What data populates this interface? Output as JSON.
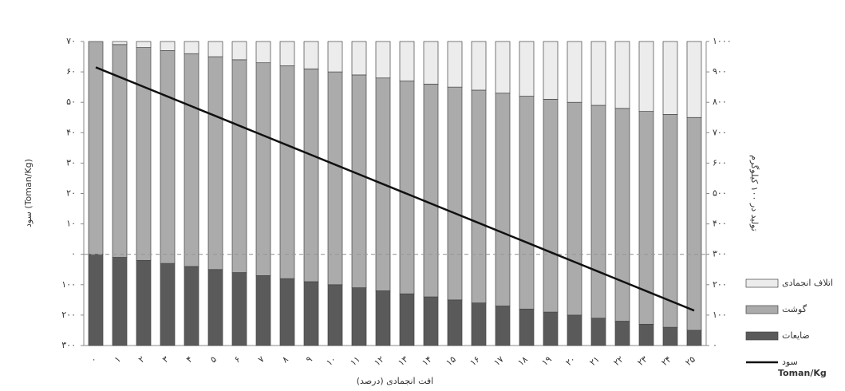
{
  "chart_data": {
    "type": "bar",
    "y_title": "سود (Toman/Kg)",
    "y2_title": "تولید در ۱۰۰ کیلوگرم",
    "x_title": "افت انجمادی (درصد)",
    "categories": [
      "۰",
      "۱",
      "۲",
      "۳",
      "۴",
      "۵",
      "۶",
      "۷",
      "۸",
      "۹",
      "۱۰",
      "۱۱",
      "۱۲",
      "۱۳",
      "۱۴",
      "۱۵",
      "۱۶",
      "۱۷",
      "۱۸",
      "۱۹",
      "۲۰",
      "۲۱",
      "۲۲",
      "۲۳",
      "۲۴",
      "۲۵"
    ],
    "series": [
      {
        "name": "ضایعات",
        "color": "#5a5a5a",
        "axis": "y2",
        "values": [
          300,
          290,
          280,
          270,
          260,
          250,
          240,
          230,
          220,
          210,
          200,
          190,
          180,
          170,
          160,
          150,
          140,
          130,
          120,
          110,
          100,
          90,
          80,
          70,
          60,
          50
        ]
      },
      {
        "name": "گوشت",
        "color": "#ababab",
        "axis": "y2",
        "values": [
          700,
          700,
          700,
          700,
          700,
          700,
          700,
          700,
          700,
          700,
          700,
          700,
          700,
          700,
          700,
          700,
          700,
          700,
          700,
          700,
          700,
          700,
          700,
          700,
          700,
          700
        ]
      },
      {
        "name": "اتلاف انجمادی",
        "color": "#ececec",
        "axis": "y2",
        "values": [
          0,
          10,
          20,
          30,
          40,
          50,
          60,
          70,
          80,
          90,
          100,
          110,
          120,
          130,
          140,
          150,
          160,
          170,
          180,
          190,
          200,
          210,
          220,
          230,
          240,
          250
        ]
      },
      {
        "name": "سود",
        "unit": "Toman/Kg",
        "type": "line",
        "color": "#111111",
        "axis": "y",
        "values": [
          61.5,
          58.3,
          55.1,
          51.9,
          48.7,
          45.5,
          42.3,
          39.1,
          35.9,
          32.7,
          29.5,
          26.3,
          23.1,
          19.9,
          16.7,
          13.5,
          10.3,
          7.1,
          3.9,
          0.7,
          -2.5,
          -5.7,
          -8.9,
          -12.1,
          -15.3,
          -18.5
        ]
      }
    ],
    "ylim": [
      -30,
      70
    ],
    "yticks": [
      {
        "value": 0,
        "label": "۰"
      },
      {
        "value": 10,
        "label": "۱۰"
      },
      {
        "value": 20,
        "label": "۲۰"
      },
      {
        "value": 30,
        "label": "۳۰"
      },
      {
        "value": 40,
        "label": "۴۰"
      },
      {
        "value": 50,
        "label": "۵۰"
      },
      {
        "value": 60,
        "label": "۶۰"
      },
      {
        "value": 70,
        "label": "۷۰"
      }
    ],
    "ylim_lower": [
      0,
      300
    ],
    "yticks_lower": [
      {
        "value": 100,
        "label": "۱۰۰"
      },
      {
        "value": 200,
        "label": "۲۰۰"
      },
      {
        "value": 300,
        "label": "۳۰۰"
      }
    ],
    "y2lim": [
      0,
      1000
    ],
    "y2ticks": [
      {
        "value": 0,
        "label": "۰"
      },
      {
        "value": 100,
        "label": "۱۰۰"
      },
      {
        "value": 200,
        "label": "۲۰۰"
      },
      {
        "value": 300,
        "label": "۳۰۰"
      },
      {
        "value": 400,
        "label": "۴۰۰"
      },
      {
        "value": 500,
        "label": "۵۰۰"
      },
      {
        "value": 600,
        "label": "۶۰۰"
      },
      {
        "value": 700,
        "label": "۷۰۰"
      },
      {
        "value": 800,
        "label": "۸۰۰"
      },
      {
        "value": 900,
        "label": "۹۰۰"
      },
      {
        "value": 1000,
        "label": "۱۰۰۰"
      }
    ],
    "zero_line": true
  }
}
